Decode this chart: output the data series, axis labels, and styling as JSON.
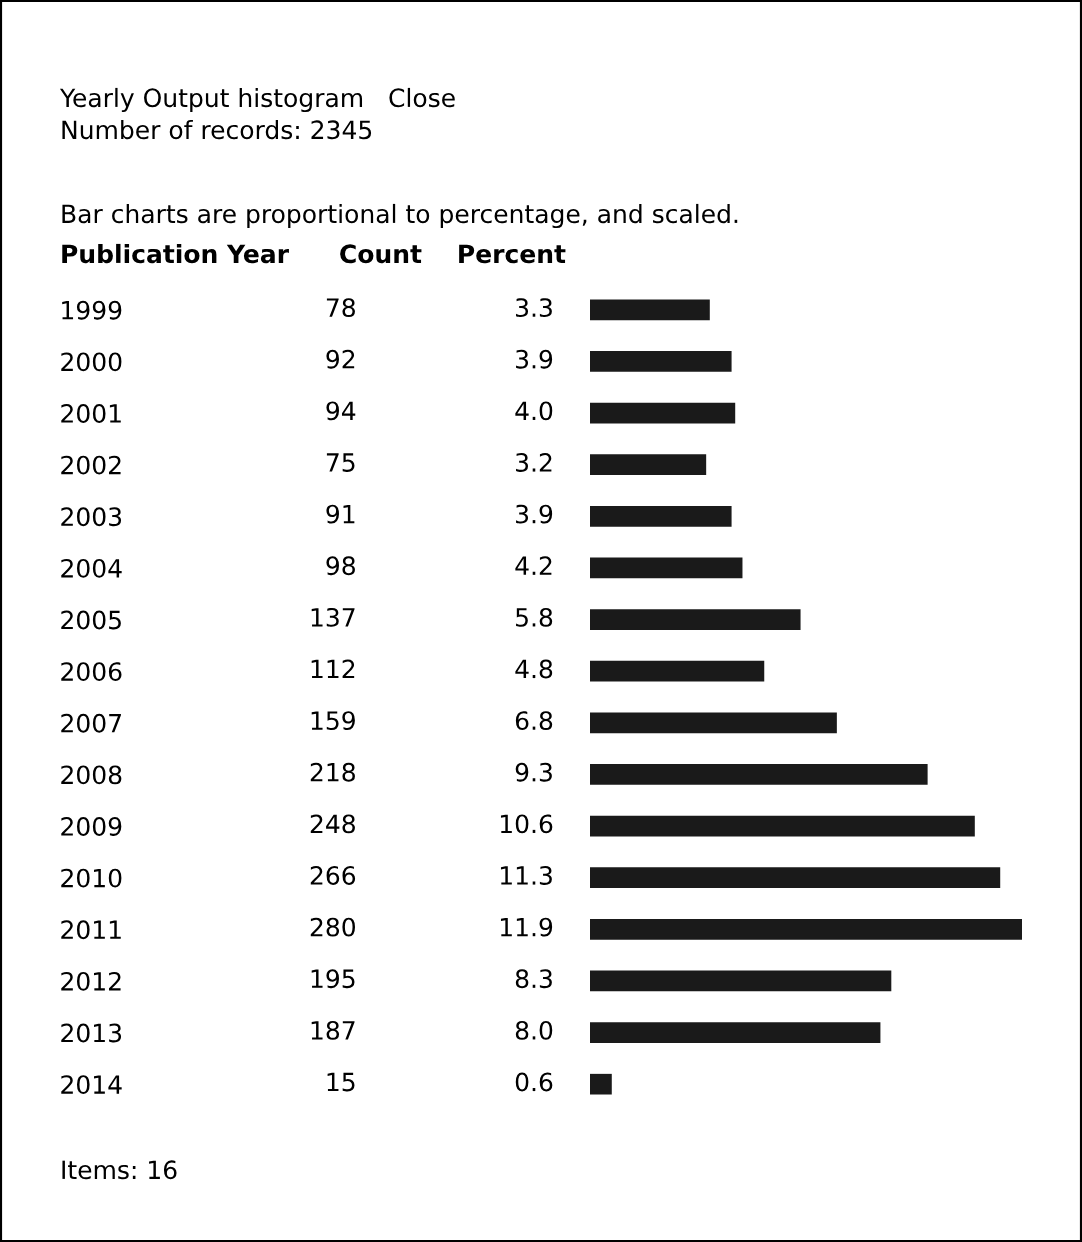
{
  "chart_data": {
    "type": "bar",
    "orientation": "horizontal",
    "title": "Yearly Output histogram   Close",
    "subtitle": "Number of records: 2345",
    "ylabel": "Publication Year",
    "xlabel": "Percent",
    "categories": [
      "1999",
      "2000",
      "2001",
      "2002",
      "2003",
      "2004",
      "2005",
      "2006",
      "2007",
      "2008",
      "2009",
      "2010",
      "2011",
      "2012",
      "2013",
      "2014"
    ],
    "values": [
      3.3,
      3.9,
      4.0,
      3.2,
      3.9,
      4.2,
      5.8,
      4.8,
      6.8,
      9.3,
      10.6,
      11.3,
      11.9,
      8.3,
      8.0,
      0.6
    ],
    "value_labels": [
      "3.3",
      "3.9",
      "4.0",
      "3.2",
      "3.9",
      "4.2",
      "5.8",
      "4.8",
      "6.8",
      "9.3",
      "10.6",
      "11.3",
      "11.9",
      "8.3",
      "8.0",
      "0.6"
    ],
    "color": "#1a1a1a",
    "xlim": [
      0,
      11.9
    ],
    "tick_labels": "y",
    "grid": false,
    "annotations": [
      "Bar charts are proportional to percentage, and scaled.",
      "Count",
      "Items: 16",
      "78",
      "92",
      "94",
      "75",
      "91",
      "98",
      "137",
      "112",
      "159",
      "218",
      "248",
      "266",
      "280",
      "195",
      "187",
      "15"
    ]
  }
}
